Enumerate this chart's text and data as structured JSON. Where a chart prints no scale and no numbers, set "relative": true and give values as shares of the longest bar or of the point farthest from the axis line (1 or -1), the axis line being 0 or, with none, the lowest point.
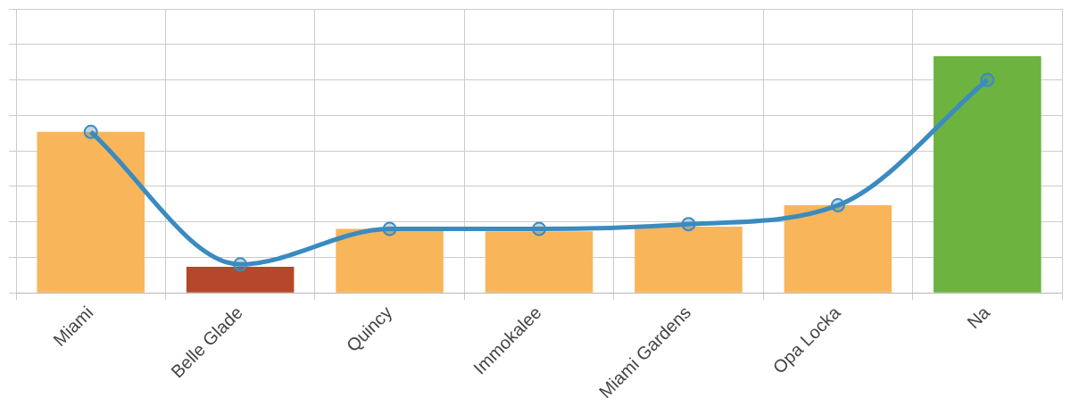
{
  "chart_data": {
    "type": "bar",
    "relative": true,
    "grid": true,
    "legend": false,
    "categories": [
      "Miami",
      "Belle Glade",
      "Quincy",
      "Immokalee",
      "Miami Gardens",
      "Opa Locka",
      "Na"
    ],
    "series": [
      {
        "colors": [
          "#f9b55a",
          "#b5472a",
          "#f9b55a",
          "#f9b55a",
          "#f9b55a",
          "#f9b55a",
          "#6db33f"
        ],
        "values": [
          0.68,
          0.11,
          0.27,
          0.26,
          0.28,
          0.37,
          1
        ]
      },
      {
        "type": "line",
        "color": "#3a8bc0",
        "marker": "circle",
        "values": [
          0.68,
          0.12,
          0.27,
          0.27,
          0.29,
          0.37,
          0.9
        ]
      }
    ]
  }
}
